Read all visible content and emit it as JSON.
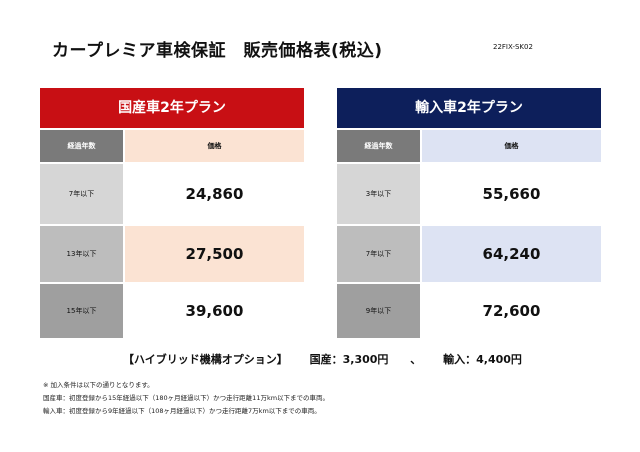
{
  "title": "カープレミア車検保証　販売価格表(税込)",
  "doc_code": "22FIX-SK02",
  "domestic": {
    "header": "国産車2年プラン",
    "col_label": "経過年数",
    "col_price": "価格",
    "rows": [
      {
        "label": "7年以下",
        "price": "24,860"
      },
      {
        "label": "13年以下",
        "price": "27,500"
      },
      {
        "label": "15年以下",
        "price": "39,600"
      }
    ]
  },
  "imported": {
    "header": "輸入車2年プラン",
    "col_label": "経過年数",
    "col_price": "価格",
    "rows": [
      {
        "label": "3年以下",
        "price": "55,660"
      },
      {
        "label": "7年以下",
        "price": "64,240"
      },
      {
        "label": "9年以下",
        "price": "72,600"
      }
    ]
  },
  "option": {
    "label": "【ハイブリッド機構オプション】",
    "domestic": "国産：3,300円",
    "sep": "、",
    "imported": "輸入：4,400円"
  },
  "notes": [
    "※ 加入条件は以下の通りとなります。",
    "国産車：初度登録から15年経過以下（180ヶ月経過以下）かつ走行距離11万km以下までの車両。",
    "輸入車：初度登録から9年経過以下（108ヶ月経過以下）かつ走行距離7万km以下までの車両。"
  ]
}
